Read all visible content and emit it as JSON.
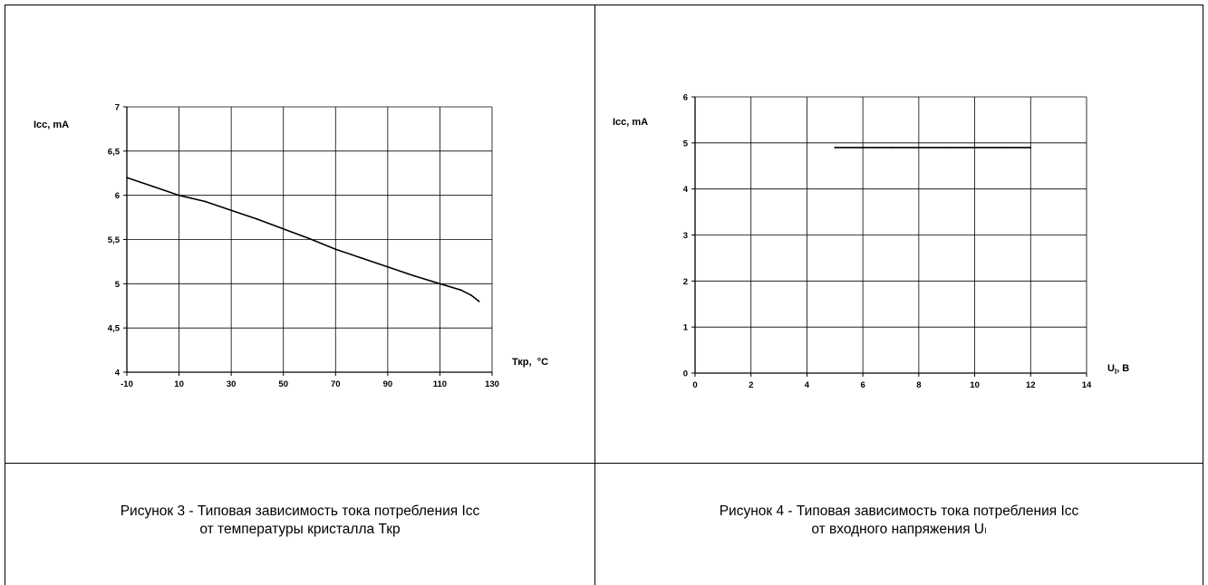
{
  "chart_data": [
    {
      "type": "line",
      "ylabel": "Icc, mA",
      "xlabel": "Ткр,  °C",
      "xlim": [
        -10,
        130
      ],
      "ylim": [
        4,
        7
      ],
      "xticks": [
        "-10",
        "10",
        "30",
        "50",
        "70",
        "90",
        "110",
        "130"
      ],
      "yticks": [
        "4",
        "4,5",
        "5",
        "5,5",
        "6",
        "6,5",
        "7"
      ],
      "grid": true,
      "series": [
        {
          "x": [
            -10,
            0,
            10,
            20,
            30,
            40,
            50,
            60,
            70,
            80,
            90,
            100,
            110,
            118,
            122,
            125
          ],
          "values": [
            6.2,
            6.1,
            6.0,
            5.93,
            5.83,
            5.73,
            5.62,
            5.51,
            5.39,
            5.29,
            5.19,
            5.09,
            5.0,
            4.93,
            4.87,
            4.8
          ]
        }
      ]
    },
    {
      "type": "line",
      "ylabel": "Icc, mA",
      "xlabel_main": "U",
      "xlabel_sub": "I",
      "xlabel_tail": ", В",
      "xlim": [
        0,
        14
      ],
      "ylim": [
        0,
        6
      ],
      "xticks": [
        "0",
        "2",
        "4",
        "6",
        "8",
        "10",
        "12",
        "14"
      ],
      "yticks": [
        "0",
        "1",
        "2",
        "3",
        "4",
        "5",
        "6"
      ],
      "grid": true,
      "series": [
        {
          "x": [
            5,
            6,
            7,
            8,
            9,
            10,
            11,
            12
          ],
          "values": [
            4.9,
            4.9,
            4.9,
            4.9,
            4.9,
            4.9,
            4.9,
            4.9
          ]
        }
      ]
    }
  ],
  "captions": {
    "left_line1": "Рисунок 3 - Типовая зависимость тока потребления Icc",
    "left_line2": "от температуры кристалла Ткр",
    "right_line1": "Рисунок 4 - Типовая зависимость тока потребления Icc",
    "right_line2_main": "от входного напряжения U",
    "right_line2_sub": "I"
  },
  "colors": {
    "line": "#000000",
    "grid": "#000000",
    "background": "#ffffff"
  }
}
